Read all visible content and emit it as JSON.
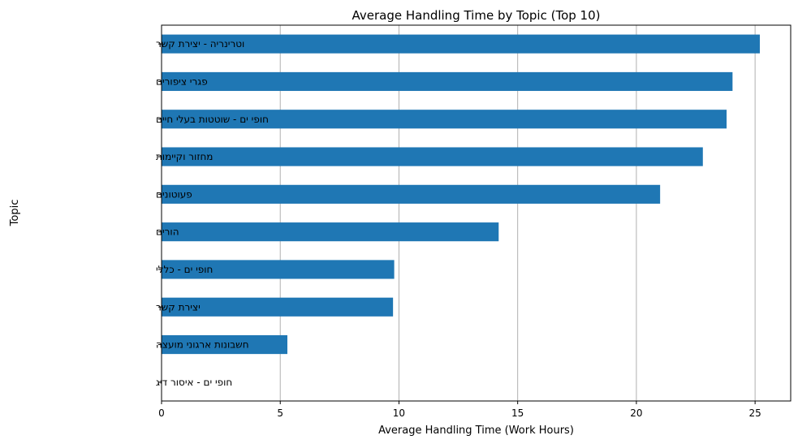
{
  "chart_data": {
    "type": "bar",
    "orientation": "horizontal",
    "title": "Average Handling Time by Topic (Top 10)",
    "xlabel": "Average Handling Time (Work Hours)",
    "ylabel": "Topic",
    "xlim": [
      0,
      26.5
    ],
    "xticks": [
      0,
      5,
      10,
      15,
      20,
      25
    ],
    "grid": "x-axis only",
    "color": "#1f77b4",
    "categories": [
      "וטרינריה - יצירת קשר",
      "פגרי ציפורים",
      "חופי ים - שוטטות בעלי חיים",
      "מחזור וקיימות",
      "פעוטונים",
      "הורים",
      "חופי ים - כללי",
      "יצירת קשר",
      "חשבונות ארגוני מועצה",
      "חופי ים - איסור דיג"
    ],
    "values": [
      25.2,
      24.05,
      23.8,
      22.8,
      21.0,
      14.2,
      9.8,
      9.75,
      5.3,
      0
    ]
  }
}
